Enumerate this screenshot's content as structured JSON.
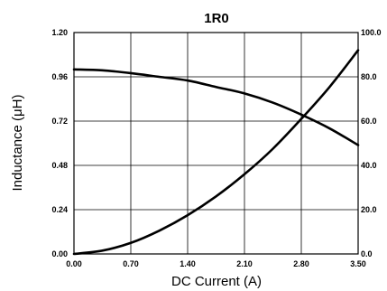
{
  "chart_data": {
    "type": "line",
    "title": "1R0",
    "xlabel": "DC Current (A)",
    "ylabel_left": "Inductance (μH)",
    "ylabel_right": "",
    "xlim": [
      0,
      3.5
    ],
    "ylim_left": [
      0,
      1.2
    ],
    "ylim_right": [
      0,
      100
    ],
    "x_ticks": [
      "0.00",
      "0.70",
      "1.40",
      "2.10",
      "2.80",
      "3.50"
    ],
    "y_left_ticks": [
      "0.00",
      "0.24",
      "0.48",
      "0.72",
      "0.96",
      "1.20"
    ],
    "y_right_ticks": [
      "0.0",
      "20.0",
      "40.0",
      "60.0",
      "80.0",
      "100.0"
    ],
    "grid": true,
    "series": [
      {
        "axis": "left",
        "color": "#000000",
        "x": [
          0,
          0.35,
          0.7,
          1.05,
          1.4,
          1.75,
          2.1,
          2.45,
          2.8,
          3.15,
          3.5
        ],
        "y": [
          1.0,
          0.995,
          0.98,
          0.96,
          0.94,
          0.905,
          0.87,
          0.82,
          0.755,
          0.68,
          0.59
        ]
      },
      {
        "axis": "right",
        "color": "#000000",
        "x": [
          0,
          0.35,
          0.7,
          1.05,
          1.4,
          1.75,
          2.1,
          2.45,
          2.8,
          3.15,
          3.5
        ],
        "y": [
          0,
          1.5,
          5.0,
          10.5,
          17.5,
          26.0,
          36.0,
          47.5,
          61.0,
          75.5,
          92.0
        ]
      }
    ]
  }
}
